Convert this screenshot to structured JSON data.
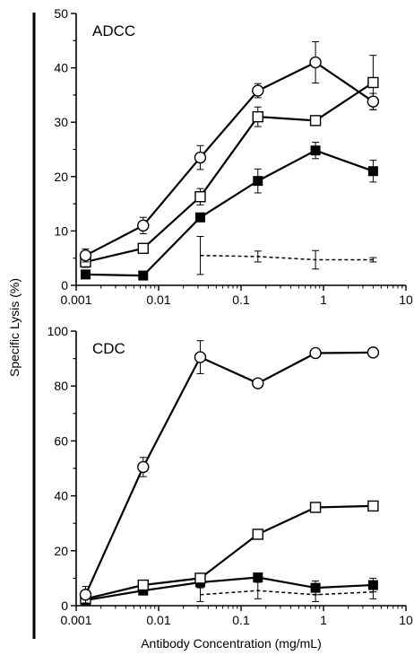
{
  "figure": {
    "ylabel": "Specific Lysis (%)",
    "xlabel": "Antibody Concentration (mg/mL)"
  },
  "chart_data": [
    {
      "type": "line",
      "title": "ADCC",
      "xscale": "log",
      "xlim": [
        0.001,
        10
      ],
      "ylim": [
        0,
        50
      ],
      "xticks": [
        "0.001",
        "0.01",
        "0.1",
        "1",
        "10"
      ],
      "yticks": [
        0,
        10,
        20,
        30,
        40,
        50
      ],
      "grid": false,
      "legend": "none",
      "series": [
        {
          "marker": "open-circle",
          "line": "solid",
          "x": [
            0.0013,
            0.0065,
            0.032,
            0.16,
            0.8,
            4
          ],
          "y": [
            5.5,
            11,
            23.5,
            35.8,
            41,
            33.8
          ],
          "err": [
            1.2,
            1.5,
            2.2,
            1.3,
            3.8,
            1.5
          ]
        },
        {
          "marker": "open-square",
          "line": "solid",
          "x": [
            0.0013,
            0.0065,
            0.032,
            0.16,
            0.8,
            4
          ],
          "y": [
            4.3,
            6.8,
            16.3,
            31,
            30.3,
            37.3
          ],
          "err": [
            1.0,
            0.8,
            1.5,
            1.8,
            0.5,
            5.0
          ]
        },
        {
          "marker": "filled-square",
          "line": "solid",
          "x": [
            0.0013,
            0.0065,
            0.032,
            0.16,
            0.8,
            4
          ],
          "y": [
            2,
            1.8,
            12.5,
            19.2,
            24.8,
            21
          ],
          "err": [
            0.5,
            0.4,
            0.8,
            2.2,
            1.5,
            2.0
          ]
        },
        {
          "marker": "none",
          "line": "dashed",
          "x": [
            0.032,
            0.16,
            0.8,
            4
          ],
          "y": [
            5.5,
            5.3,
            4.7,
            4.7
          ],
          "err": [
            3.5,
            1.0,
            1.7,
            0.4
          ]
        }
      ]
    },
    {
      "type": "line",
      "title": "CDC",
      "xscale": "log",
      "xlim": [
        0.001,
        10
      ],
      "ylim": [
        0,
        100
      ],
      "xticks": [
        "0.001",
        "0.01",
        "0.1",
        "1",
        "10"
      ],
      "yticks": [
        0,
        20,
        40,
        60,
        80,
        100
      ],
      "grid": false,
      "legend": "none",
      "series": [
        {
          "marker": "open-circle",
          "line": "solid",
          "x": [
            0.0013,
            0.0065,
            0.032,
            0.16,
            0.8,
            4
          ],
          "y": [
            4,
            50.5,
            90.5,
            81,
            92,
            92.2
          ],
          "err": [
            3,
            3.5,
            6,
            1,
            0.5,
            0.5
          ]
        },
        {
          "marker": "open-square",
          "line": "solid",
          "x": [
            0.0013,
            0.0065,
            0.032,
            0.16,
            0.8,
            4
          ],
          "y": [
            2.5,
            7.5,
            10,
            26,
            35.8,
            36.3
          ],
          "err": [
            1.5,
            1,
            1,
            1,
            0.5,
            0.8
          ]
        },
        {
          "marker": "filled-square",
          "line": "solid",
          "x": [
            0.0013,
            0.0065,
            0.032,
            0.16,
            0.8,
            4
          ],
          "y": [
            2,
            5.5,
            8.5,
            10.3,
            6.5,
            7.5
          ],
          "err": [
            0.5,
            1,
            1.5,
            1.5,
            2.5,
            2.5
          ]
        },
        {
          "marker": "none",
          "line": "dashed",
          "x": [
            0.032,
            0.16,
            0.8,
            4
          ],
          "y": [
            4,
            5.5,
            4,
            5
          ],
          "err": [
            2.5,
            3,
            2.5,
            2.5
          ]
        }
      ]
    }
  ]
}
